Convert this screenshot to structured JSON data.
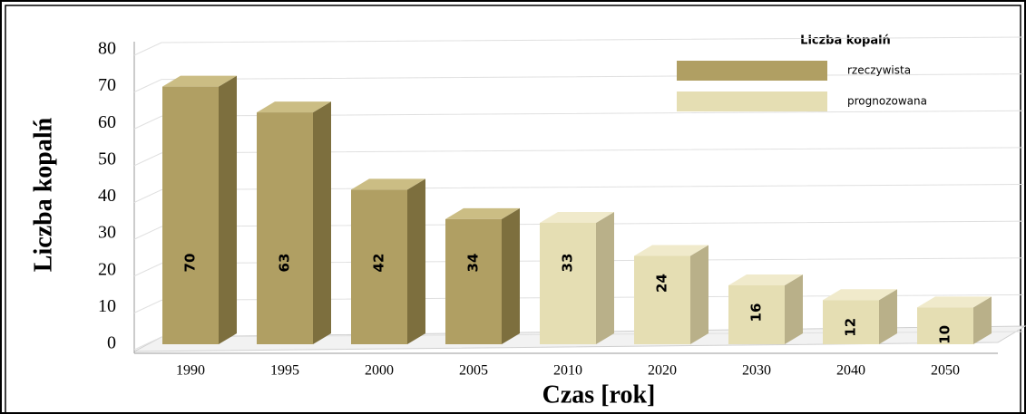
{
  "chart_data": {
    "type": "bar3d",
    "ylabel": "Liczba kopalń",
    "xlabel": "Czas [rok]",
    "legend_title": "Liczba kopalń",
    "categories": [
      "1990",
      "1995",
      "2000",
      "2005",
      "2010",
      "2020",
      "2030",
      "2040",
      "2050"
    ],
    "series": [
      {
        "name": "rzeczywista",
        "color": "#b09f63",
        "side": "#7d6f3e",
        "top": "#cbbd84",
        "values": [
          70,
          63,
          42,
          34,
          null,
          null,
          null,
          null,
          null
        ]
      },
      {
        "name": "prognozowana",
        "color": "#e5deb3",
        "side": "#b9b089",
        "top": "#f0eacb",
        "values": [
          null,
          null,
          null,
          null,
          33,
          24,
          16,
          12,
          10
        ]
      }
    ],
    "ylim": [
      0,
      80
    ],
    "yticks": [
      0,
      10,
      20,
      30,
      40,
      50,
      60,
      70,
      80
    ],
    "grid": true,
    "legend": "upper right"
  }
}
